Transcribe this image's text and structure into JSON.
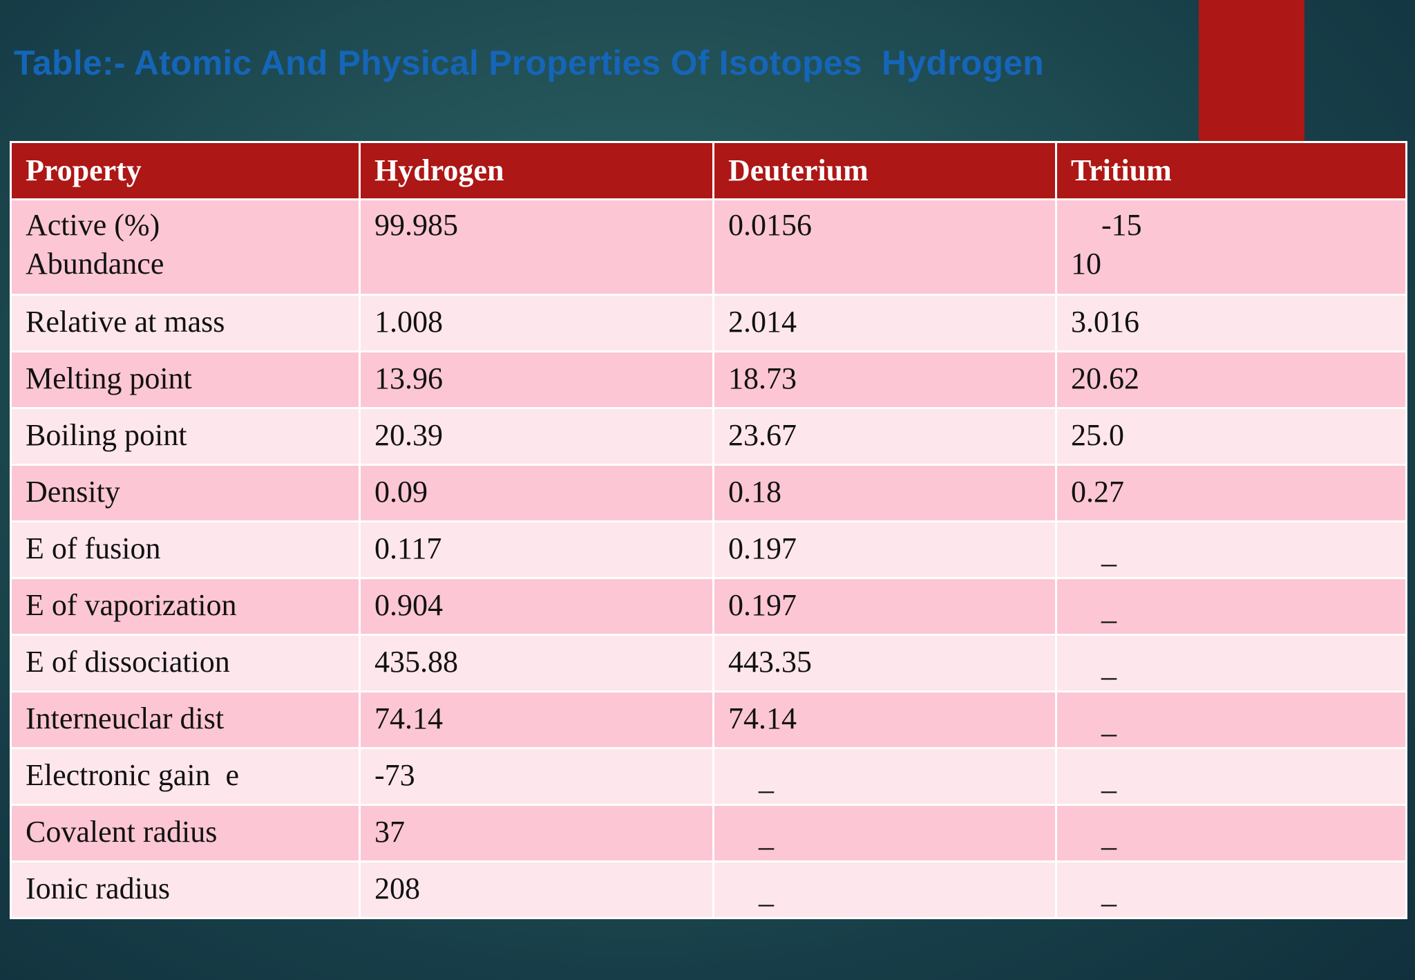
{
  "title": "Table:- Atomic And Physical Properties Of Isotopes  Hydrogen",
  "colors": {
    "accent": "#ad1716",
    "title": "#1565b8",
    "row_dark": "#fcc6d4",
    "row_light": "#fde6ec"
  },
  "table": {
    "headers": [
      "Property",
      "Hydrogen",
      "Deuterium",
      "Tritium"
    ],
    "rows": [
      {
        "property": [
          "Active (%)",
          "Abundance"
        ],
        "hydrogen": "99.985",
        "deuterium": "0.0156",
        "tritium": [
          "-15",
          "10"
        ]
      },
      {
        "property": "Relative at mass",
        "hydrogen": "1.008",
        "deuterium": "2.014",
        "tritium": "3.016"
      },
      {
        "property": "Melting point",
        "hydrogen": "13.96",
        "deuterium": "18.73",
        "tritium": "20.62"
      },
      {
        "property": "Boiling point",
        "hydrogen": "20.39",
        "deuterium": "23.67",
        "tritium": "25.0"
      },
      {
        "property": "Density",
        "hydrogen": "0.09",
        "deuterium": "0.18",
        "tritium": "0.27"
      },
      {
        "property": "E of fusion",
        "hydrogen": "0.117",
        "deuterium": "0.197",
        "tritium": "_"
      },
      {
        "property": "E of vaporization",
        "hydrogen": "0.904",
        "deuterium": "0.197",
        "tritium": "_"
      },
      {
        "property": "E of dissociation",
        "hydrogen": "435.88",
        "deuterium": "443.35",
        "tritium": "_"
      },
      {
        "property": "Interneuclar dist",
        "hydrogen": "74.14",
        "deuterium": "74.14",
        "tritium": "_"
      },
      {
        "property": "Electronic gain  e",
        "hydrogen": "-73",
        "deuterium": "_",
        "tritium": "_"
      },
      {
        "property": "Covalent radius",
        "hydrogen": "37",
        "deuterium": "_",
        "tritium": "_"
      },
      {
        "property": "Ionic radius",
        "hydrogen": "208",
        "deuterium": "_",
        "tritium": "_"
      }
    ]
  }
}
